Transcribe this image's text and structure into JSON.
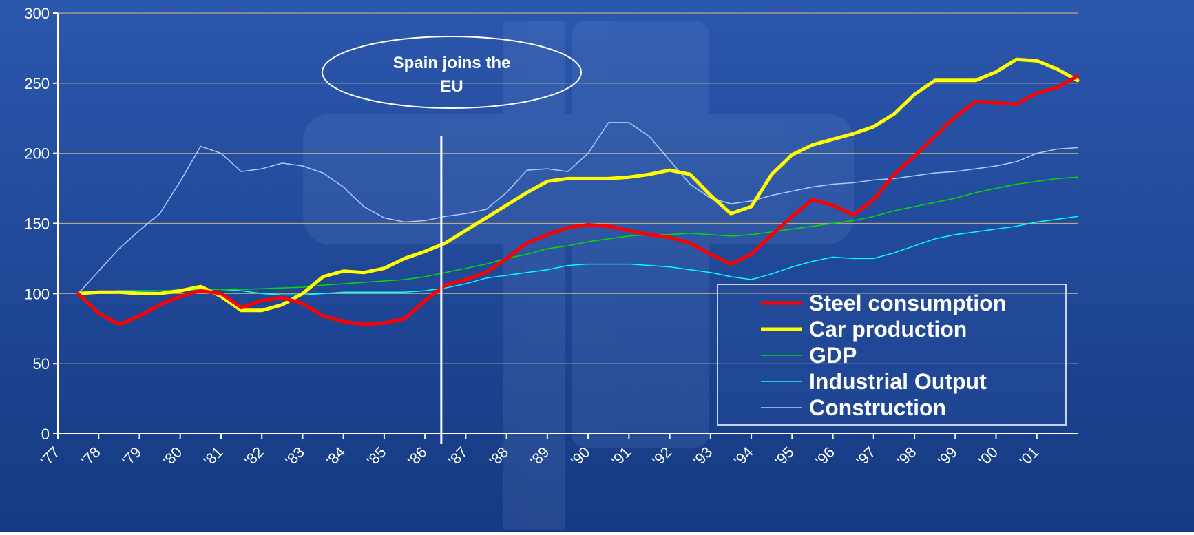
{
  "chart_data": {
    "type": "line",
    "x": [
      1977.5,
      1978,
      1978.5,
      1979,
      1979.5,
      1980,
      1980.5,
      1981,
      1981.5,
      1982,
      1982.5,
      1983,
      1983.5,
      1984,
      1984.5,
      1985,
      1985.5,
      1986,
      1986.5,
      1987,
      1987.5,
      1988,
      1988.5,
      1989,
      1989.5,
      1990,
      1990.5,
      1991,
      1991.5,
      1992,
      1992.5,
      1993,
      1993.5,
      1994,
      1994.5,
      1995,
      1995.5,
      1996,
      1996.5,
      1997,
      1997.5,
      1998,
      1998.5,
      1999,
      1999.5,
      2000,
      2000.5,
      2001,
      2001.5,
      2002
    ],
    "series": [
      {
        "name": "Steel consumption",
        "color": "#ff0000",
        "width": 5,
        "values": [
          100,
          86,
          78,
          84,
          92,
          98,
          102,
          100,
          90,
          95,
          97,
          93,
          84,
          80,
          78,
          79,
          82,
          95,
          106,
          110,
          115,
          125,
          136,
          142,
          147,
          149,
          148,
          145,
          142,
          140,
          136,
          128,
          121,
          128,
          142,
          155,
          167,
          163,
          156,
          167,
          185,
          198,
          212,
          226,
          237,
          236,
          235,
          243,
          247,
          255
        ]
      },
      {
        "name": "Car production",
        "color": "#ffff00",
        "width": 5,
        "values": [
          100,
          101,
          101,
          100,
          100,
          102,
          105,
          98,
          88,
          88,
          92,
          100,
          112,
          116,
          115,
          118,
          125,
          130,
          136,
          145,
          154,
          163,
          172,
          180,
          182,
          182,
          182,
          183,
          185,
          188,
          185,
          170,
          157,
          162,
          185,
          199,
          206,
          210,
          214,
          219,
          228,
          242,
          252,
          252,
          252,
          258,
          267,
          266,
          260,
          252
        ]
      },
      {
        "name": "GDP",
        "color": "#00dd00",
        "width": 1.5,
        "values": [
          100,
          100.5,
          101,
          101.5,
          102,
          102.5,
          103,
          103,
          103,
          103.5,
          104,
          104.5,
          106,
          107,
          108,
          109,
          110,
          112,
          115,
          118,
          121,
          125,
          128,
          132,
          134,
          137,
          139,
          141,
          142,
          142,
          143,
          142,
          141,
          142,
          144,
          146,
          148,
          150,
          152,
          155,
          159,
          162,
          165,
          168,
          172,
          175,
          178,
          180,
          182,
          183
        ]
      },
      {
        "name": "Industrial Output",
        "color": "#00ffff",
        "width": 1.5,
        "values": [
          100,
          101,
          102,
          102,
          102,
          102.5,
          103,
          103,
          102,
          100,
          99,
          99,
          100,
          101,
          101,
          101,
          101,
          102,
          104,
          107,
          111,
          113,
          115,
          117,
          120,
          121,
          121,
          121,
          120,
          119,
          117,
          115,
          112,
          110,
          114,
          119,
          123,
          126,
          125,
          125,
          129,
          134,
          139,
          142,
          144,
          146,
          148,
          151,
          153,
          155
        ]
      },
      {
        "name": "Construction",
        "color": "#aaccff",
        "width": 1.5,
        "values": [
          100,
          116,
          132,
          145,
          157,
          180,
          205,
          200,
          187,
          189,
          193,
          191,
          186,
          176,
          162,
          154,
          151,
          152,
          155,
          157,
          160,
          172,
          188,
          189,
          187,
          200,
          222,
          222,
          212,
          195,
          178,
          168,
          164,
          166,
          170,
          173,
          176,
          178,
          179,
          181,
          182,
          184,
          186,
          187,
          189,
          191,
          194,
          200,
          203,
          204
        ]
      }
    ],
    "xlim": [
      1977,
      2002
    ],
    "ylim": [
      0,
      300
    ],
    "yticks": [
      0,
      50,
      100,
      150,
      200,
      250,
      300
    ],
    "xticks": [
      {
        "value": 1977,
        "label": "'77"
      },
      {
        "value": 1978,
        "label": "'78"
      },
      {
        "value": 1979,
        "label": "'79"
      },
      {
        "value": 1980,
        "label": "'80"
      },
      {
        "value": 1981,
        "label": "'81"
      },
      {
        "value": 1982,
        "label": "'82"
      },
      {
        "value": 1983,
        "label": "'83"
      },
      {
        "value": 1984,
        "label": "'84"
      },
      {
        "value": 1985,
        "label": "'85"
      },
      {
        "value": 1986,
        "label": "'86"
      },
      {
        "value": 1987,
        "label": "'87"
      },
      {
        "value": 1988,
        "label": "'88"
      },
      {
        "value": 1989,
        "label": "'89"
      },
      {
        "value": 1990,
        "label": "'90"
      },
      {
        "value": 1991,
        "label": "'91"
      },
      {
        "value": 1992,
        "label": "'92"
      },
      {
        "value": 1993,
        "label": "'93"
      },
      {
        "value": 1994,
        "label": "'94"
      },
      {
        "value": 1995,
        "label": "'95"
      },
      {
        "value": 1996,
        "label": "'96"
      },
      {
        "value": 1997,
        "label": "'97"
      },
      {
        "value": 1998,
        "label": "'98"
      },
      {
        "value": 1999,
        "label": "'99"
      },
      {
        "value": 2000,
        "label": "'00"
      },
      {
        "value": 2001,
        "label": "'01"
      }
    ],
    "grid": true,
    "legend": "lower right",
    "annotation": {
      "lines": [
        "Spain joins the",
        "EU"
      ],
      "x": 1986.4
    }
  }
}
